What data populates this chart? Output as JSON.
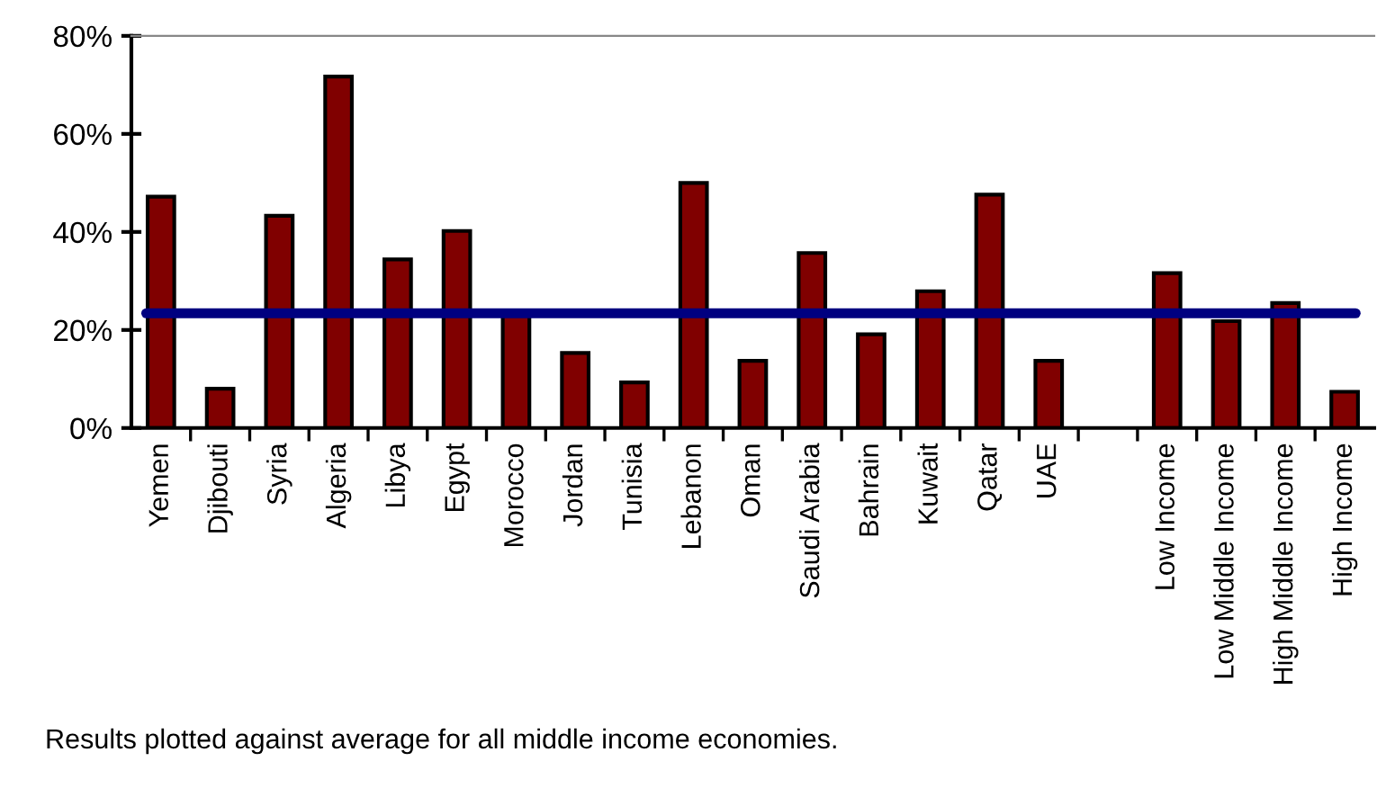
{
  "chart_data": {
    "type": "bar",
    "categories": [
      "Yemen",
      "Djibouti",
      "Syria",
      "Algeria",
      "Libya",
      "Egypt",
      "Morocco",
      "Jordan",
      "Tunisia",
      "Lebanon",
      "Oman",
      "Saudi Arabia",
      "Bahrain",
      "Kuwait",
      "Qatar",
      "UAE",
      null,
      "Low Income",
      "Low Middle Income",
      "High Middle Income",
      "High Income"
    ],
    "values": [
      47.2,
      8.0,
      43.3,
      71.7,
      34.4,
      40.2,
      23,
      15.3,
      9.3,
      50.0,
      13.7,
      35.7,
      19.1,
      27.9,
      47.6,
      13.7,
      null,
      31.6,
      21.8,
      25.5,
      7.4
    ],
    "color": "#800000",
    "ylim": [
      0,
      80
    ],
    "yticks": [
      {
        "value": 0,
        "label": "0%"
      },
      {
        "value": 20,
        "label": "20%"
      },
      {
        "value": 40,
        "label": "40%"
      },
      {
        "value": 60,
        "label": "60%"
      },
      {
        "value": 80,
        "label": "80%"
      }
    ],
    "ref_lines": [
      {
        "axis": "y",
        "value": 23.4,
        "label": null,
        "color": "#000080"
      }
    ],
    "annotations": [
      "Results plotted against average for all middle income economies."
    ],
    "grid": false,
    "legend": false
  }
}
